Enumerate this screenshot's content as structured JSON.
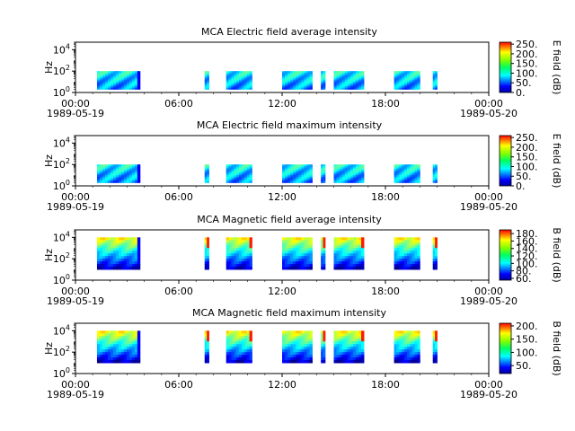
{
  "chart_data": [
    {
      "type": "heatmap",
      "title": "MCA  Electric field average intensity",
      "ylabel": "Hz",
      "yticks": [
        "10^0",
        "10^2",
        "10^4"
      ],
      "ylim": [
        1,
        50000
      ],
      "y_scale": "log",
      "xlim": [
        "1989-05-19T00:00",
        "1989-05-20T00:00"
      ],
      "xticks": [
        "00:00",
        "06:00",
        "12:00",
        "18:00",
        "00:00"
      ],
      "x_dates": [
        "1989-05-19",
        "1989-05-20"
      ],
      "colorbar": {
        "label": "E field (dB)",
        "ticks": [
          "0.",
          "50.",
          "100.",
          "150.",
          "200.",
          "250."
        ],
        "range": [
          0,
          260
        ]
      },
      "cell_range": [
        2,
        100
      ],
      "segments": [
        [
          "01:15",
          "03:45"
        ],
        [
          "07:30",
          "07:45"
        ],
        [
          "08:45",
          "10:15"
        ],
        [
          "12:00",
          "13:45"
        ],
        [
          "14:15",
          "14:30"
        ],
        [
          "15:00",
          "16:45"
        ],
        [
          "18:30",
          "20:00"
        ],
        [
          "20:45",
          "21:00"
        ]
      ]
    },
    {
      "type": "heatmap",
      "title": "MCA  Electric field maximum intensity",
      "ylabel": "Hz",
      "yticks": [
        "10^0",
        "10^2",
        "10^4"
      ],
      "ylim": [
        1,
        50000
      ],
      "y_scale": "log",
      "xlim": [
        "1989-05-19T00:00",
        "1989-05-20T00:00"
      ],
      "xticks": [
        "00:00",
        "06:00",
        "12:00",
        "18:00",
        "00:00"
      ],
      "x_dates": [
        "1989-05-19",
        "1989-05-20"
      ],
      "colorbar": {
        "label": "E field (dB)",
        "ticks": [
          "0.",
          "50.",
          "100.",
          "150.",
          "200.",
          "250."
        ],
        "range": [
          0,
          260
        ]
      },
      "cell_range": [
        2,
        100
      ],
      "segments": [
        [
          "01:15",
          "03:45"
        ],
        [
          "07:30",
          "07:45"
        ],
        [
          "08:45",
          "10:15"
        ],
        [
          "12:00",
          "13:45"
        ],
        [
          "14:15",
          "14:30"
        ],
        [
          "15:00",
          "16:45"
        ],
        [
          "18:30",
          "20:00"
        ],
        [
          "20:45",
          "21:00"
        ]
      ]
    },
    {
      "type": "heatmap",
      "title": "MCA  Magnetic field average intensity",
      "ylabel": "Hz",
      "yticks": [
        "10^0",
        "10^2",
        "10^4"
      ],
      "ylim": [
        1,
        50000
      ],
      "y_scale": "log",
      "xlim": [
        "1989-05-19T00:00",
        "1989-05-20T00:00"
      ],
      "xticks": [
        "00:00",
        "06:00",
        "12:00",
        "18:00",
        "00:00"
      ],
      "x_dates": [
        "1989-05-19",
        "1989-05-20"
      ],
      "colorbar": {
        "label": "B field (dB)",
        "ticks": [
          "60.",
          "80.",
          "100.",
          "120.",
          "140.",
          "160.",
          "180."
        ],
        "range": [
          55,
          190
        ]
      },
      "cell_range": [
        10,
        10000
      ],
      "segments": [
        [
          "01:15",
          "03:45"
        ],
        [
          "07:30",
          "07:45"
        ],
        [
          "08:45",
          "10:15"
        ],
        [
          "12:00",
          "13:45"
        ],
        [
          "14:15",
          "14:30"
        ],
        [
          "15:00",
          "16:45"
        ],
        [
          "18:30",
          "20:00"
        ],
        [
          "20:45",
          "21:00"
        ]
      ]
    },
    {
      "type": "heatmap",
      "title": "MCA  Magnetic field maximum intensity",
      "ylabel": "Hz",
      "yticks": [
        "10^0",
        "10^2",
        "10^4"
      ],
      "ylim": [
        1,
        50000
      ],
      "y_scale": "log",
      "xlim": [
        "1989-05-19T00:00",
        "1989-05-20T00:00"
      ],
      "xticks": [
        "00:00",
        "06:00",
        "12:00",
        "18:00",
        "00:00"
      ],
      "x_dates": [
        "1989-05-19",
        "1989-05-20"
      ],
      "colorbar": {
        "label": "B field (dB)",
        "ticks": [
          "50.",
          "100.",
          "150.",
          "200."
        ],
        "range": [
          20,
          210
        ]
      },
      "cell_range": [
        10,
        10000
      ],
      "segments": [
        [
          "01:15",
          "03:45"
        ],
        [
          "07:30",
          "07:45"
        ],
        [
          "08:45",
          "10:15"
        ],
        [
          "12:00",
          "13:45"
        ],
        [
          "14:15",
          "14:30"
        ],
        [
          "15:00",
          "16:45"
        ],
        [
          "18:30",
          "20:00"
        ],
        [
          "20:45",
          "21:00"
        ]
      ]
    }
  ]
}
